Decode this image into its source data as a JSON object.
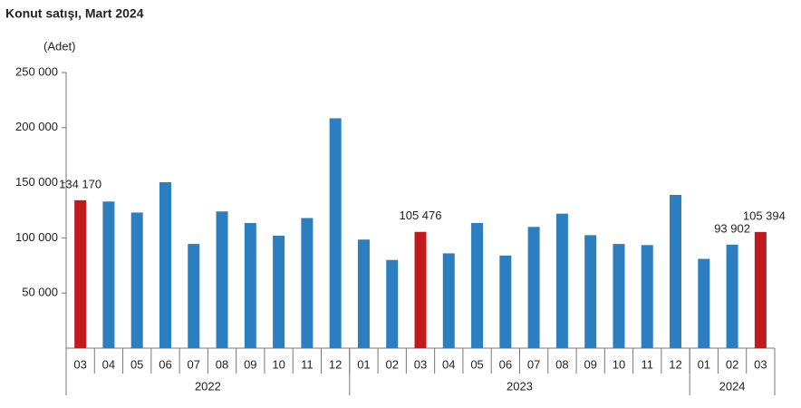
{
  "chart_data": {
    "type": "bar",
    "title": "Konut satışı, Mart 2024",
    "y_label": "(Adet)",
    "groups": [
      {
        "label": "2022",
        "categories": [
          "03",
          "04",
          "05",
          "06",
          "07",
          "08",
          "09",
          "10",
          "11",
          "12"
        ]
      },
      {
        "label": "2023",
        "categories": [
          "01",
          "02",
          "03",
          "04",
          "05",
          "06",
          "07",
          "08",
          "09",
          "10",
          "11",
          "12"
        ]
      },
      {
        "label": "2024",
        "categories": [
          "01",
          "02",
          "03"
        ]
      }
    ],
    "values": [
      134170,
      133000,
      123000,
      150500,
      94500,
      124000,
      113500,
      102000,
      118000,
      208500,
      98500,
      80000,
      105476,
      86000,
      113500,
      84000,
      110000,
      122000,
      102500,
      94500,
      93500,
      139000,
      81000,
      93902,
      105394
    ],
    "value_labels": [
      "134 170",
      null,
      null,
      null,
      null,
      null,
      null,
      null,
      null,
      null,
      null,
      null,
      "105 476",
      null,
      null,
      null,
      null,
      null,
      null,
      null,
      null,
      null,
      null,
      "93 902",
      "105 394"
    ],
    "colors": [
      "#c0191e",
      "#2b7fc1",
      "#2b7fc1",
      "#2b7fc1",
      "#2b7fc1",
      "#2b7fc1",
      "#2b7fc1",
      "#2b7fc1",
      "#2b7fc1",
      "#2b7fc1",
      "#2b7fc1",
      "#2b7fc1",
      "#c0191e",
      "#2b7fc1",
      "#2b7fc1",
      "#2b7fc1",
      "#2b7fc1",
      "#2b7fc1",
      "#2b7fc1",
      "#2b7fc1",
      "#2b7fc1",
      "#2b7fc1",
      "#2b7fc1",
      "#2b7fc1",
      "#c0191e"
    ],
    "ylim": [
      0,
      250000
    ],
    "yticks": [
      {
        "value": 50000,
        "label": "50 000"
      },
      {
        "value": 100000,
        "label": "100 000"
      },
      {
        "value": 150000,
        "label": "150 000"
      },
      {
        "value": 200000,
        "label": "200 000"
      },
      {
        "value": 250000,
        "label": "250 000"
      }
    ],
    "grid": false
  }
}
